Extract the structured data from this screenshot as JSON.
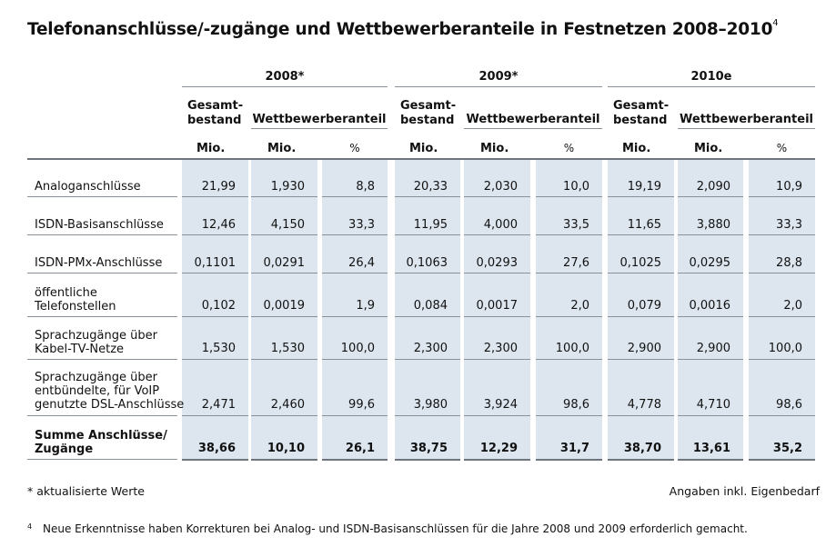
{
  "title": "Telefonanschlüsse/-zugänge und Wettbewerberanteile in Festnetzen 2008–2010",
  "title_sup": "4",
  "years": [
    "2008*",
    "2009*",
    "2010e"
  ],
  "header": {
    "gesamt": "Gesamt-\nbestand",
    "wettbewerber": "Wettbewerberanteil",
    "units": [
      "Mio.",
      "Mio.",
      "%"
    ]
  },
  "rows": [
    {
      "label": "Analoganschlüsse",
      "values": [
        "21,99",
        "1,930",
        "8,8",
        "20,33",
        "2,030",
        "10,0",
        "19,19",
        "2,090",
        "10,9"
      ]
    },
    {
      "label": "ISDN-Basisanschlüsse",
      "values": [
        "12,46",
        "4,150",
        "33,3",
        "11,95",
        "4,000",
        "33,5",
        "11,65",
        "3,880",
        "33,3"
      ]
    },
    {
      "label": "ISDN-PMx-Anschlüsse",
      "values": [
        "0,1101",
        "0,0291",
        "26,4",
        "0,1063",
        "0,0293",
        "27,6",
        "0,1025",
        "0,0295",
        "28,8"
      ]
    },
    {
      "label": "öffentliche\nTelefonstellen",
      "values": [
        "0,102",
        "0,0019",
        "1,9",
        "0,084",
        "0,0017",
        "2,0",
        "0,079",
        "0,0016",
        "2,0"
      ]
    },
    {
      "label": "Sprachzugänge über\nKabel-TV-Netze",
      "values": [
        "1,530",
        "1,530",
        "100,0",
        "2,300",
        "2,300",
        "100,0",
        "2,900",
        "2,900",
        "100,0"
      ]
    },
    {
      "label": "Sprachzugänge über\nentbündelte, für VoIP\ngenutzte DSL-Anschlüsse",
      "values": [
        "2,471",
        "2,460",
        "99,6",
        "3,980",
        "3,924",
        "98,6",
        "4,778",
        "4,710",
        "98,6"
      ]
    },
    {
      "label": "Summe Anschlüsse/\nZugänge",
      "values": [
        "38,66",
        "10,10",
        "26,1",
        "38,75",
        "12,29",
        "31,7",
        "38,70",
        "13,61",
        "35,2"
      ],
      "total": true
    }
  ],
  "note_left": "* aktualisierte Werte",
  "note_right": "Angaben inkl. Eigenbedarf",
  "footnote_mark": "4",
  "footnote": "Neue Erkenntnisse haben Korrekturen bei Analog- und ISDN-Basisanschlüssen für die Jahre 2008 und 2009 erforderlich gemacht.",
  "colors": {
    "shade": "#dde6ef",
    "rule": "#8a9098"
  }
}
